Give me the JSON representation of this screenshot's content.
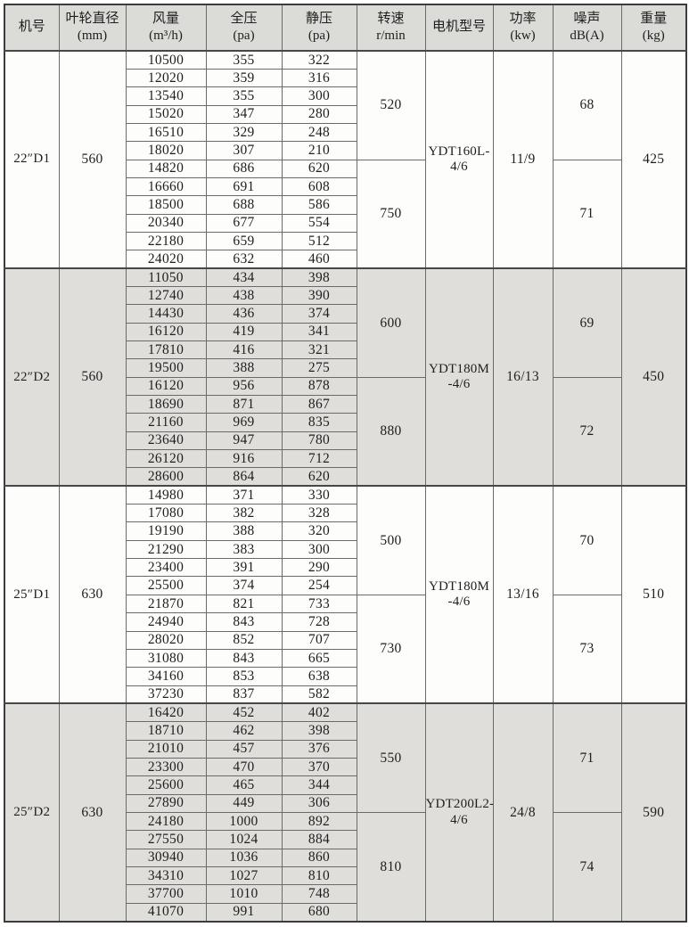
{
  "table": {
    "headers": [
      {
        "id": "machine-no",
        "lines": [
          "机号"
        ]
      },
      {
        "id": "impeller-diameter",
        "lines": [
          "叶轮直径",
          "(mm)"
        ]
      },
      {
        "id": "airflow",
        "lines": [
          "风量",
          "(m³/h)"
        ]
      },
      {
        "id": "total-pressure",
        "lines": [
          "全压",
          "(pa)"
        ]
      },
      {
        "id": "static-pressure",
        "lines": [
          "静压",
          "(pa)"
        ]
      },
      {
        "id": "speed",
        "lines": [
          "转速",
          "r/min"
        ]
      },
      {
        "id": "motor-model",
        "lines": [
          "电机型号"
        ]
      },
      {
        "id": "power",
        "lines": [
          "功率",
          "(kw)"
        ]
      },
      {
        "id": "noise",
        "lines": [
          "噪声",
          "dB(A)"
        ]
      },
      {
        "id": "weight",
        "lines": [
          "重量",
          "(kg)"
        ]
      }
    ],
    "groups": [
      {
        "machine_no": "22″D1",
        "impeller_diameter": "560",
        "shaded": false,
        "rows": [
          [
            "10500",
            "355",
            "322"
          ],
          [
            "12020",
            "359",
            "316"
          ],
          [
            "13540",
            "355",
            "300"
          ],
          [
            "15020",
            "347",
            "280"
          ],
          [
            "16510",
            "329",
            "248"
          ],
          [
            "18020",
            "307",
            "210"
          ],
          [
            "14820",
            "686",
            "620"
          ],
          [
            "16660",
            "691",
            "608"
          ],
          [
            "18500",
            "688",
            "586"
          ],
          [
            "20340",
            "677",
            "554"
          ],
          [
            "22180",
            "659",
            "512"
          ],
          [
            "24020",
            "632",
            "460"
          ]
        ],
        "speeds": [
          "520",
          "750"
        ],
        "motor_model_lines": [
          "YDT160L-",
          "4/6"
        ],
        "power": "11/9",
        "noise": [
          "68",
          "71"
        ],
        "weight": "425"
      },
      {
        "machine_no": "22″D2",
        "impeller_diameter": "560",
        "shaded": true,
        "rows": [
          [
            "11050",
            "434",
            "398"
          ],
          [
            "12740",
            "438",
            "390"
          ],
          [
            "14430",
            "436",
            "374"
          ],
          [
            "16120",
            "419",
            "341"
          ],
          [
            "17810",
            "416",
            "321"
          ],
          [
            "19500",
            "388",
            "275"
          ],
          [
            "16120",
            "956",
            "878"
          ],
          [
            "18690",
            "871",
            "867"
          ],
          [
            "21160",
            "969",
            "835"
          ],
          [
            "23640",
            "947",
            "780"
          ],
          [
            "26120",
            "916",
            "712"
          ],
          [
            "28600",
            "864",
            "620"
          ]
        ],
        "speeds": [
          "600",
          "880"
        ],
        "motor_model_lines": [
          "YDT180M",
          "-4/6"
        ],
        "power": "16/13",
        "noise": [
          "69",
          "72"
        ],
        "weight": "450"
      },
      {
        "machine_no": "25″D1",
        "impeller_diameter": "630",
        "shaded": false,
        "rows": [
          [
            "14980",
            "371",
            "330"
          ],
          [
            "17080",
            "382",
            "328"
          ],
          [
            "19190",
            "388",
            "320"
          ],
          [
            "21290",
            "383",
            "300"
          ],
          [
            "23400",
            "391",
            "290"
          ],
          [
            "25500",
            "374",
            "254"
          ],
          [
            "21870",
            "821",
            "733"
          ],
          [
            "24940",
            "843",
            "728"
          ],
          [
            "28020",
            "852",
            "707"
          ],
          [
            "31080",
            "843",
            "665"
          ],
          [
            "34160",
            "853",
            "638"
          ],
          [
            "37230",
            "837",
            "582"
          ]
        ],
        "speeds": [
          "500",
          "730"
        ],
        "motor_model_lines": [
          "YDT180M",
          "-4/6"
        ],
        "power": "13/16",
        "noise": [
          "70",
          "73"
        ],
        "weight": "510"
      },
      {
        "machine_no": "25″D2",
        "impeller_diameter": "630",
        "shaded": true,
        "rows": [
          [
            "16420",
            "452",
            "402"
          ],
          [
            "18710",
            "462",
            "398"
          ],
          [
            "21010",
            "457",
            "376"
          ],
          [
            "23300",
            "470",
            "370"
          ],
          [
            "25600",
            "465",
            "344"
          ],
          [
            "27890",
            "449",
            "306"
          ],
          [
            "24180",
            "1000",
            "892"
          ],
          [
            "27550",
            "1024",
            "884"
          ],
          [
            "30940",
            "1036",
            "860"
          ],
          [
            "34310",
            "1027",
            "810"
          ],
          [
            "37700",
            "1010",
            "748"
          ],
          [
            "41070",
            "991",
            "680"
          ]
        ],
        "speeds": [
          "550",
          "810"
        ],
        "motor_model_lines": [
          "YDT200L2-",
          "4/6"
        ],
        "power": "24/8",
        "noise": [
          "71",
          "74"
        ],
        "weight": "590"
      }
    ]
  },
  "colors": {
    "header_bg": "#dbdbd8",
    "shaded_block_bg": "#dfdeda",
    "plain_block_bg": "#fdfdfb",
    "grid_line": "#6a6a6a",
    "heavy_line": "#3c3c3c",
    "text": "#1e1e1e"
  }
}
